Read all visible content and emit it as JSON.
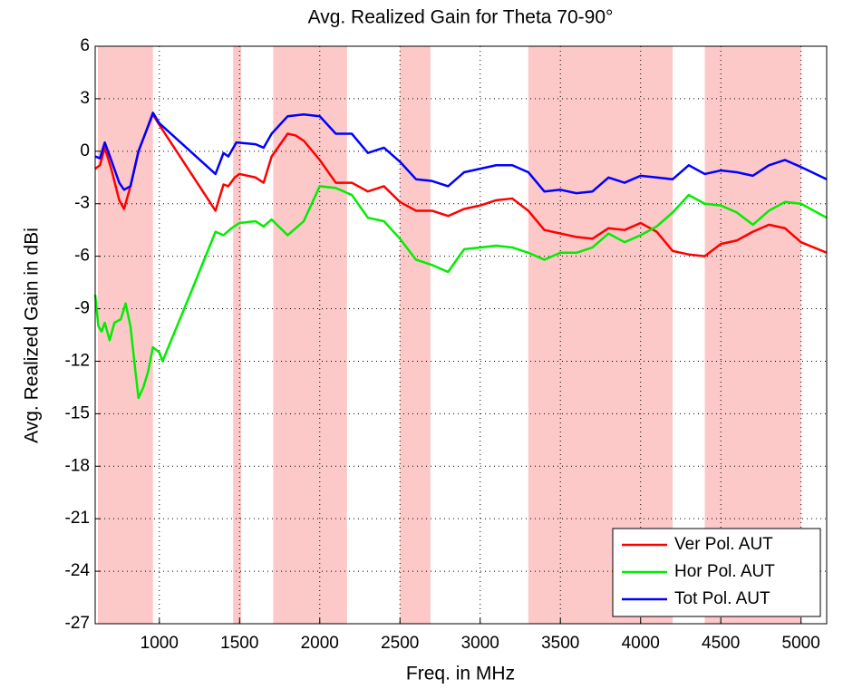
{
  "chart_data": {
    "type": "line",
    "title": "Avg. Realized Gain for Theta 70-90°",
    "x_label": "Freq. in MHz",
    "y_label": "Avg. Realized Gain in dBi",
    "xlim": [
      600,
      5160
    ],
    "ylim": [
      -27,
      6
    ],
    "xticks": [
      1000,
      1500,
      2000,
      2500,
      3000,
      3500,
      4000,
      4500,
      5000
    ],
    "yticks": [
      -27,
      -24,
      -21,
      -18,
      -15,
      -12,
      -9,
      -6,
      -3,
      0,
      3,
      6
    ],
    "grid": true,
    "legend": "lower right",
    "band_color": "#fcc8c8",
    "shaded_bands": [
      [
        617,
        960
      ],
      [
        1460,
        1510
      ],
      [
        1710,
        2170
      ],
      [
        2500,
        2690
      ],
      [
        3300,
        4200
      ],
      [
        4400,
        5000
      ]
    ],
    "series": [
      {
        "name": "Ver Pol. AUT",
        "color": "#ff0000",
        "x": [
          600,
          630,
          660,
          700,
          750,
          780,
          820,
          870,
          920,
          960,
          1000,
          1350,
          1400,
          1430,
          1470,
          1500,
          1600,
          1650,
          1700,
          1800,
          1850,
          1900,
          2000,
          2100,
          2200,
          2300,
          2400,
          2500,
          2600,
          2700,
          2800,
          2900,
          3000,
          3100,
          3200,
          3300,
          3400,
          3500,
          3600,
          3700,
          3800,
          3900,
          4000,
          4100,
          4200,
          4300,
          4400,
          4500,
          4600,
          4700,
          4800,
          4900,
          5000,
          5160
        ],
        "values": [
          -1.0,
          -0.8,
          0.2,
          -1.0,
          -2.8,
          -3.3,
          -2.0,
          0,
          1.2,
          2.1,
          1.5,
          -3.4,
          -1.9,
          -2.0,
          -1.5,
          -1.3,
          -1.5,
          -1.8,
          -0.3,
          1.0,
          0.9,
          0.6,
          -0.5,
          -1.8,
          -1.8,
          -2.3,
          -2.0,
          -2.9,
          -3.4,
          -3.4,
          -3.7,
          -3.3,
          -3.1,
          -2.8,
          -2.7,
          -3.4,
          -4.5,
          -4.7,
          -4.9,
          -5.0,
          -4.4,
          -4.5,
          -4.1,
          -4.6,
          -5.7,
          -5.9,
          -6.0,
          -5.3,
          -5.1,
          -4.6,
          -4.2,
          -4.4,
          -5.2,
          -5.8
        ]
      },
      {
        "name": "Hor Pol. AUT",
        "color": "#00ee00",
        "x": [
          600,
          620,
          640,
          660,
          690,
          720,
          760,
          790,
          820,
          850,
          870,
          900,
          930,
          960,
          1000,
          1020,
          1200,
          1350,
          1400,
          1450,
          1500,
          1600,
          1650,
          1700,
          1800,
          1900,
          2000,
          2100,
          2200,
          2300,
          2400,
          2500,
          2600,
          2700,
          2800,
          2900,
          3000,
          3100,
          3200,
          3300,
          3400,
          3500,
          3600,
          3700,
          3800,
          3900,
          4000,
          4100,
          4200,
          4300,
          4400,
          4500,
          4600,
          4700,
          4800,
          4900,
          5000,
          5160
        ],
        "values": [
          -8.2,
          -10.0,
          -10.3,
          -9.8,
          -10.8,
          -9.8,
          -9.6,
          -8.7,
          -10.0,
          -12.5,
          -14.1,
          -13.5,
          -12.6,
          -11.2,
          -11.5,
          -12.0,
          -8.0,
          -4.6,
          -4.8,
          -4.4,
          -4.1,
          -4.0,
          -4.3,
          -3.9,
          -4.8,
          -4.0,
          -2.0,
          -2.1,
          -2.5,
          -3.8,
          -4.0,
          -5.0,
          -6.2,
          -6.5,
          -6.9,
          -5.6,
          -5.5,
          -5.4,
          -5.5,
          -5.8,
          -6.2,
          -5.8,
          -5.8,
          -5.5,
          -4.7,
          -5.2,
          -4.8,
          -4.3,
          -3.5,
          -2.5,
          -3.0,
          -3.1,
          -3.5,
          -4.2,
          -3.4,
          -2.9,
          -3.0,
          -3.8
        ]
      },
      {
        "name": "Tot Pol. AUT",
        "color": "#0000ff",
        "x": [
          600,
          630,
          660,
          700,
          750,
          780,
          820,
          870,
          920,
          960,
          1000,
          1350,
          1400,
          1430,
          1480,
          1600,
          1650,
          1700,
          1800,
          1900,
          2000,
          2100,
          2200,
          2300,
          2400,
          2500,
          2600,
          2700,
          2800,
          2900,
          3000,
          3100,
          3200,
          3300,
          3400,
          3500,
          3600,
          3700,
          3800,
          3900,
          4000,
          4100,
          4200,
          4300,
          4400,
          4500,
          4600,
          4700,
          4800,
          4900,
          5000,
          5160
        ],
        "values": [
          -0.3,
          -0.4,
          0.5,
          -0.5,
          -1.8,
          -2.2,
          -2.0,
          0,
          1.2,
          2.2,
          1.6,
          -1.3,
          -0.1,
          -0.3,
          0.5,
          0.4,
          0.2,
          1.0,
          2.0,
          2.1,
          2.0,
          1.0,
          1.0,
          -0.1,
          0.2,
          -0.6,
          -1.6,
          -1.7,
          -2.0,
          -1.2,
          -1.0,
          -0.8,
          -0.8,
          -1.2,
          -2.3,
          -2.2,
          -2.4,
          -2.3,
          -1.5,
          -1.8,
          -1.4,
          -1.5,
          -1.6,
          -0.8,
          -1.3,
          -1.1,
          -1.2,
          -1.4,
          -0.8,
          -0.5,
          -0.9,
          -1.6
        ]
      }
    ]
  }
}
